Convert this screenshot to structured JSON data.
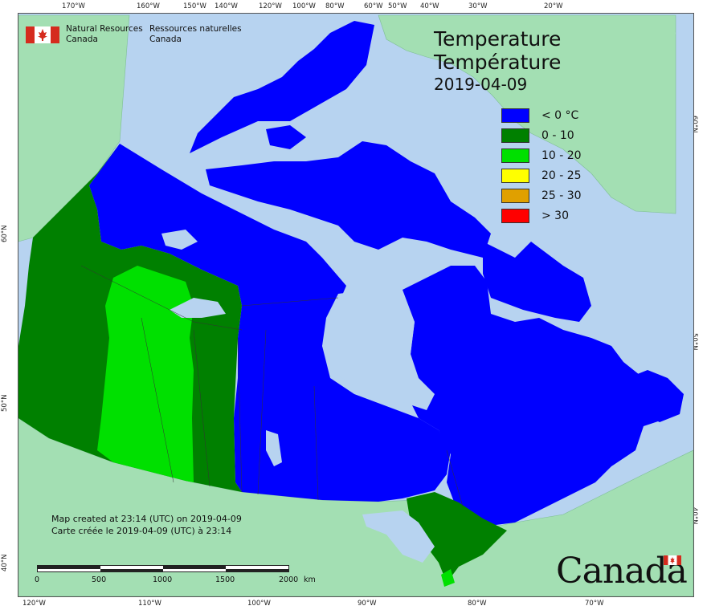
{
  "map": {
    "title_en": "Temperature",
    "title_fr": "Température",
    "date": "2019-04-09",
    "agency_en": [
      "Natural Resources",
      "Canada"
    ],
    "agency_fr": [
      "Ressources naturelles",
      "Canada"
    ],
    "credit_en": "Map created at 23:14 (UTC) on 2019-04-09",
    "credit_fr": "Carte créée le 2019-04-09 (UTC) à 23:14",
    "wordmark": "Canada",
    "colors": {
      "water": "#b7d3f0",
      "foreign_land": "#a3dfb3",
      "lake": "#b7d3f0"
    }
  },
  "legend": [
    {
      "label": "< 0 °C",
      "color": "#0000ff"
    },
    {
      "label": "0 - 10",
      "color": "#008000"
    },
    {
      "label": "10 - 20",
      "color": "#00e000"
    },
    {
      "label": "20 - 25",
      "color": "#ffff00"
    },
    {
      "label": "25 - 30",
      "color": "#e0a000"
    },
    {
      "label": "> 30",
      "color": "#ff0000"
    }
  ],
  "scale_bar": {
    "labels": [
      "0",
      "500",
      "1000",
      "1500",
      "2000"
    ],
    "unit": "km"
  },
  "graticule": {
    "top": [
      "170°W",
      "160°W",
      "150°W",
      "140°W",
      "120°W",
      "100°W",
      "80°W",
      "60°W",
      "50°W",
      "40°W",
      "30°W",
      "20°W"
    ],
    "bottom": [
      "120°W",
      "110°W",
      "100°W",
      "90°W",
      "80°W",
      "70°W"
    ],
    "left": [
      "60°N",
      "50°N",
      "40°N"
    ],
    "right": [
      "60°N",
      "50°N",
      "40°N"
    ]
  },
  "regions": [
    {
      "name": "yukon-bc-coast",
      "temp_class": "0 - 10"
    },
    {
      "name": "alberta-saskatchewan",
      "temp_class": "10 - 20"
    },
    {
      "name": "northern-and-eastern-canada",
      "temp_class": "< 0 °C"
    },
    {
      "name": "southern-ontario",
      "temp_class": "0 - 10"
    }
  ]
}
